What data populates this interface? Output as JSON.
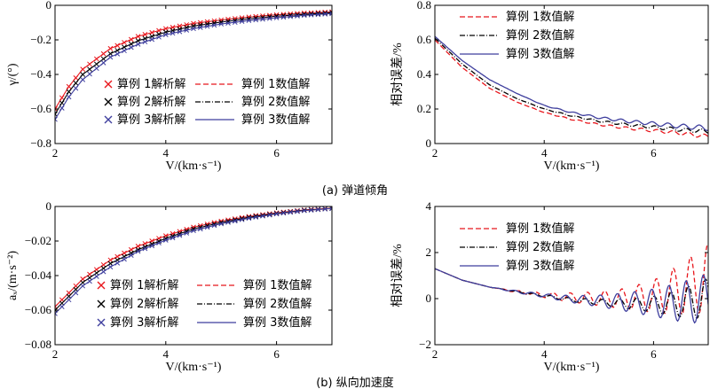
{
  "colors": {
    "red": "#e8161c",
    "black": "#000000",
    "blue": "#3f3f9e"
  },
  "captions": {
    "a": "(a) 弹道倾角",
    "b": "(b) 纵向加速度"
  },
  "chart_data": [
    {
      "id": "a-left",
      "type": "line",
      "ylabel": "γ/(°)",
      "xlabel": "V/(km·s⁻¹)",
      "xlim": [
        2,
        7
      ],
      "ylim": [
        -0.8,
        0
      ],
      "xticks": [
        2,
        4,
        6
      ],
      "yticks": [
        0,
        -0.2,
        -0.4,
        -0.6,
        -0.8
      ],
      "yticklabels": [
        "0",
        "−0.2",
        "−0.4",
        "−0.6",
        "−0.8"
      ],
      "legend": [
        {
          "label": "算例 1解析解",
          "style": "marker-x",
          "color": "#e8161c"
        },
        {
          "label": "算例 2解析解",
          "style": "marker-x",
          "color": "#000000"
        },
        {
          "label": "算例 3解析解",
          "style": "marker-x",
          "color": "#3f3f9e"
        },
        {
          "label": "算例 1数值解",
          "style": "dashed",
          "color": "#e8161c"
        },
        {
          "label": "算例 2数值解",
          "style": "dashdot",
          "color": "#000000"
        },
        {
          "label": "算例 3数值解",
          "style": "solid",
          "color": "#3f3f9e"
        }
      ],
      "series": [
        {
          "name": "算例 1",
          "color": "#e8161c",
          "x": [
            2,
            2.25,
            2.5,
            3,
            3.5,
            4,
            4.5,
            5,
            5.5,
            6,
            6.5,
            7
          ],
          "y": [
            -0.6,
            -0.47,
            -0.37,
            -0.25,
            -0.18,
            -0.135,
            -0.105,
            -0.085,
            -0.068,
            -0.055,
            -0.045,
            -0.038
          ]
        },
        {
          "name": "算例 2",
          "color": "#000000",
          "x": [
            2,
            2.25,
            2.5,
            3,
            3.5,
            4,
            4.5,
            5,
            5.5,
            6,
            6.5,
            7
          ],
          "y": [
            -0.63,
            -0.5,
            -0.4,
            -0.28,
            -0.205,
            -0.155,
            -0.12,
            -0.097,
            -0.078,
            -0.063,
            -0.052,
            -0.043
          ]
        },
        {
          "name": "算例 3",
          "color": "#3f3f9e",
          "x": [
            2,
            2.25,
            2.5,
            3,
            3.5,
            4,
            4.5,
            5,
            5.5,
            6,
            6.5,
            7
          ],
          "y": [
            -0.66,
            -0.53,
            -0.43,
            -0.3,
            -0.225,
            -0.17,
            -0.135,
            -0.108,
            -0.088,
            -0.072,
            -0.058,
            -0.048
          ]
        }
      ]
    },
    {
      "id": "a-right",
      "type": "line",
      "ylabel": "相对误差/%",
      "xlabel": "V/(km·s⁻¹)",
      "xlim": [
        2,
        7
      ],
      "ylim": [
        0,
        0.8
      ],
      "xticks": [
        2,
        4,
        6
      ],
      "yticks": [
        0,
        0.2,
        0.4,
        0.6,
        0.8
      ],
      "yticklabels": [
        "0",
        "0.2",
        "0.4",
        "0.6",
        "0.8"
      ],
      "legend": [
        {
          "label": "算例 1数值解",
          "style": "dashed",
          "color": "#e8161c"
        },
        {
          "label": "算例 2数值解",
          "style": "dashdot",
          "color": "#000000"
        },
        {
          "label": "算例 3数值解",
          "style": "solid",
          "color": "#3f3f9e"
        }
      ],
      "series": [
        {
          "name": "算例 1数值解",
          "color": "#e8161c",
          "dash": "6,3",
          "x": [
            2,
            2.5,
            3,
            3.5,
            4,
            4.5,
            5,
            5.5,
            6,
            6.5,
            7
          ],
          "y": [
            0.6,
            0.44,
            0.32,
            0.24,
            0.18,
            0.14,
            0.11,
            0.09,
            0.075,
            0.06,
            0.04
          ],
          "wiggle": 0.012
        },
        {
          "name": "算例 2数值解",
          "color": "#000000",
          "dash": "6,2,1,2",
          "x": [
            2,
            2.5,
            3,
            3.5,
            4,
            4.5,
            5,
            5.5,
            6,
            6.5,
            7
          ],
          "y": [
            0.61,
            0.46,
            0.34,
            0.26,
            0.2,
            0.16,
            0.13,
            0.11,
            0.095,
            0.08,
            0.07
          ],
          "wiggle": 0.012
        },
        {
          "name": "算例 3数值解",
          "color": "#3f3f9e",
          "dash": "",
          "x": [
            2,
            2.5,
            3,
            3.5,
            4,
            4.5,
            5,
            5.5,
            6,
            6.5,
            7
          ],
          "y": [
            0.62,
            0.48,
            0.37,
            0.29,
            0.22,
            0.18,
            0.15,
            0.13,
            0.115,
            0.1,
            0.09
          ],
          "wiggle": 0.015
        }
      ]
    },
    {
      "id": "b-left",
      "type": "line",
      "ylabel": "aₓ/(m·s⁻²)",
      "xlabel": "V/(km·s⁻¹)",
      "xlim": [
        2,
        7
      ],
      "ylim": [
        -0.08,
        0
      ],
      "xticks": [
        2,
        4,
        6
      ],
      "yticks": [
        0,
        -0.02,
        -0.04,
        -0.06,
        -0.08
      ],
      "yticklabels": [
        "0",
        "−0.02",
        "−0.04",
        "−0.06",
        "−0.08"
      ],
      "legend": [
        {
          "label": "算例 1解析解",
          "style": "marker-x",
          "color": "#e8161c"
        },
        {
          "label": "算例 2解析解",
          "style": "marker-x",
          "color": "#000000"
        },
        {
          "label": "算例 3解析解",
          "style": "marker-x",
          "color": "#3f3f9e"
        },
        {
          "label": "算例 1数值解",
          "style": "dashed",
          "color": "#e8161c"
        },
        {
          "label": "算例 2数值解",
          "style": "dashdot",
          "color": "#000000"
        },
        {
          "label": "算例 3数值解",
          "style": "solid",
          "color": "#3f3f9e"
        }
      ],
      "series": [
        {
          "name": "算例 1",
          "color": "#e8161c",
          "x": [
            2,
            2.5,
            3,
            3.5,
            4,
            4.5,
            5,
            5.5,
            6,
            6.5,
            7
          ],
          "y": [
            -0.058,
            -0.042,
            -0.031,
            -0.023,
            -0.017,
            -0.012,
            -0.0085,
            -0.0058,
            -0.0037,
            -0.002,
            -0.001
          ]
        },
        {
          "name": "算例 2",
          "color": "#000000",
          "x": [
            2,
            2.5,
            3,
            3.5,
            4,
            4.5,
            5,
            5.5,
            6,
            6.5,
            7
          ],
          "y": [
            -0.06,
            -0.044,
            -0.033,
            -0.025,
            -0.0185,
            -0.013,
            -0.0093,
            -0.0063,
            -0.004,
            -0.0022,
            -0.0011
          ]
        },
        {
          "name": "算例 3",
          "color": "#3f3f9e",
          "x": [
            2,
            2.5,
            3,
            3.5,
            4,
            4.5,
            5,
            5.5,
            6,
            6.5,
            7
          ],
          "y": [
            -0.062,
            -0.046,
            -0.035,
            -0.026,
            -0.0195,
            -0.014,
            -0.01,
            -0.0068,
            -0.0043,
            -0.0024,
            -0.0012
          ]
        }
      ]
    },
    {
      "id": "b-right",
      "type": "line",
      "ylabel": "相对误差/%",
      "xlabel": "V/(km·s⁻¹)",
      "xlim": [
        2,
        7
      ],
      "ylim": [
        -2,
        4
      ],
      "xticks": [
        2,
        4,
        6
      ],
      "yticks": [
        4,
        2,
        0,
        -2
      ],
      "yticklabels": [
        "4",
        "2",
        "0",
        "−2"
      ],
      "legend": [
        {
          "label": "算例 1数值解",
          "style": "dashed",
          "color": "#e8161c"
        },
        {
          "label": "算例 2数值解",
          "style": "dashdot",
          "color": "#000000"
        },
        {
          "label": "算例 3数值解",
          "style": "solid",
          "color": "#3f3f9e"
        }
      ],
      "series": [
        {
          "name": "算例 1数值解",
          "color": "#e8161c",
          "dash": "5,3",
          "x": [
            2,
            2.5,
            3,
            3.5,
            4,
            4.5,
            5,
            5.5,
            6,
            6.5,
            7
          ],
          "y": [
            1.3,
            0.8,
            0.5,
            0.3,
            0.15,
            0.05,
            0.0,
            0.0,
            0.1,
            0.4,
            0.9
          ],
          "osc": [
            0,
            0,
            0,
            0.05,
            0.1,
            0.2,
            0.3,
            0.45,
            0.7,
            1.1,
            1.5
          ]
        },
        {
          "name": "算例 2数值解",
          "color": "#000000",
          "dash": "6,2,1,2",
          "x": [
            2,
            2.5,
            3,
            3.5,
            4,
            4.5,
            5,
            5.5,
            6,
            6.5,
            7
          ],
          "y": [
            1.3,
            0.8,
            0.5,
            0.3,
            0.12,
            -0.05,
            -0.15,
            -0.22,
            -0.25,
            -0.2,
            0.0
          ],
          "osc": [
            0,
            0,
            0,
            0.03,
            0.05,
            0.08,
            0.12,
            0.2,
            0.35,
            0.6,
            0.9
          ]
        },
        {
          "name": "算例 3数值解",
          "color": "#3f3f9e",
          "dash": "",
          "x": [
            2,
            2.5,
            3,
            3.5,
            4,
            4.5,
            5,
            5.5,
            6,
            6.5,
            7
          ],
          "y": [
            1.3,
            0.8,
            0.5,
            0.3,
            0.13,
            -0.02,
            -0.1,
            -0.15,
            -0.18,
            -0.15,
            0.0
          ],
          "osc": [
            0,
            0,
            0,
            0.05,
            0.08,
            0.15,
            0.25,
            0.4,
            0.6,
            0.85,
            1.1
          ]
        }
      ]
    }
  ]
}
